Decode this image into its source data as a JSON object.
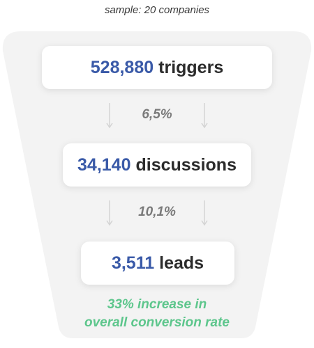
{
  "caption": "sample: 20 companies",
  "stages": [
    {
      "value": "528,880",
      "label": "triggers"
    },
    {
      "value": "34,140",
      "label": "discussions"
    },
    {
      "value": "3,511",
      "label": "leads"
    }
  ],
  "conversion_rates": [
    "6,5%",
    "10,1%"
  ],
  "highlight": {
    "line1": "33% increase in",
    "line2": "overall conversion rate"
  },
  "colors": {
    "value_blue": "#3a5aa8",
    "label_dark": "#2b2b2b",
    "rate_gray": "#7a7a7a",
    "highlight_green": "#5dc68c",
    "funnel_bg": "#f3f3f3"
  }
}
